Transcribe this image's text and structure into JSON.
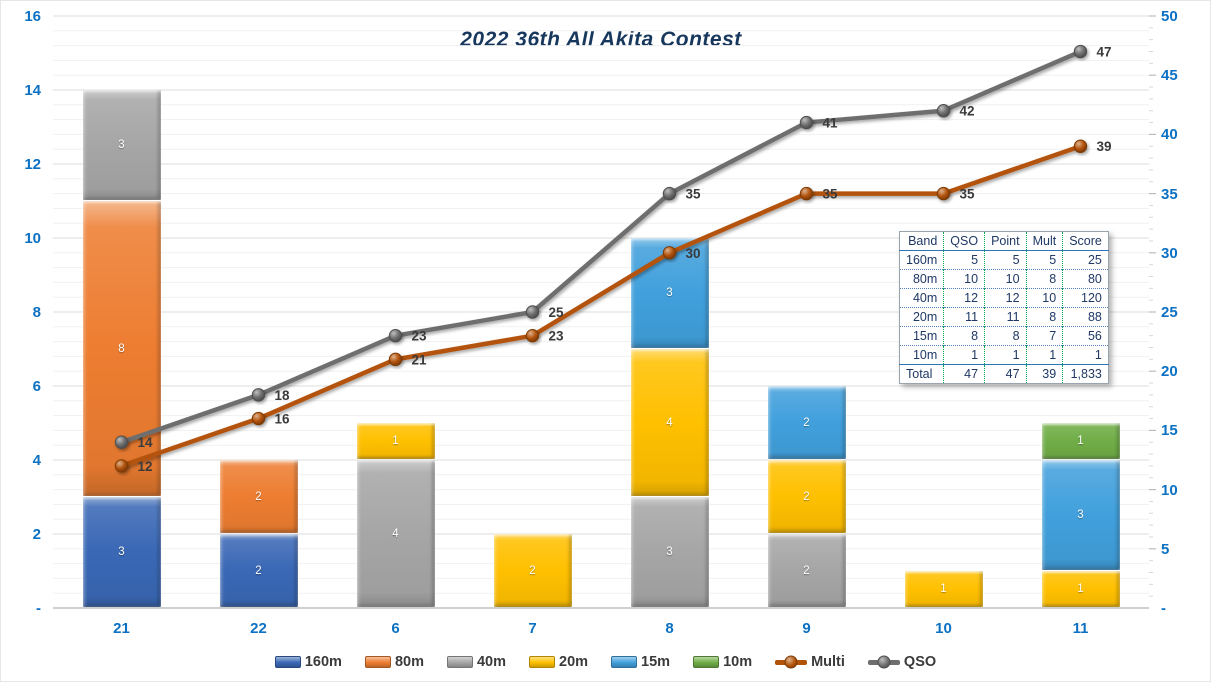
{
  "chart_data": {
    "type": "bar",
    "subtype": "stacked-column-with-lines",
    "title": "2022 36th All Akita Contest",
    "categories": [
      "21",
      "22",
      "6",
      "7",
      "8",
      "9",
      "10",
      "11"
    ],
    "series": [
      {
        "name": "160m",
        "color": "#3A68B5",
        "values": [
          3,
          2,
          0,
          0,
          0,
          0,
          0,
          0
        ]
      },
      {
        "name": "80m",
        "color": "#ED7D31",
        "values": [
          8,
          2,
          0,
          0,
          0,
          0,
          0,
          0
        ]
      },
      {
        "name": "40m",
        "color": "#A6A6A6",
        "values": [
          3,
          0,
          4,
          0,
          3,
          2,
          0,
          0
        ]
      },
      {
        "name": "20m",
        "color": "#FFC000",
        "values": [
          0,
          0,
          1,
          2,
          4,
          2,
          1,
          1
        ]
      },
      {
        "name": "15m",
        "color": "#41A0DC",
        "values": [
          0,
          0,
          0,
          0,
          3,
          2,
          0,
          3
        ]
      },
      {
        "name": "10m",
        "color": "#70AD47",
        "values": [
          0,
          0,
          0,
          0,
          0,
          0,
          0,
          1
        ]
      }
    ],
    "line_series": [
      {
        "name": "Multi",
        "color": "#B35309",
        "axis": "right",
        "values": [
          12,
          16,
          21,
          23,
          30,
          35,
          35,
          39
        ]
      },
      {
        "name": "QSO",
        "color": "#6E6E6E",
        "axis": "right",
        "values": [
          14,
          18,
          23,
          25,
          35,
          41,
          42,
          47
        ]
      }
    ],
    "left_axis": {
      "min": 0,
      "max": 16,
      "major_step": 2,
      "minor_step": 0.4,
      "tick_labels": [
        "-",
        "2",
        "4",
        "6",
        "8",
        "10",
        "12",
        "14",
        "16"
      ]
    },
    "right_axis": {
      "min": 0,
      "max": 50,
      "major_step": 5,
      "minor_step": 1,
      "tick_labels": [
        "-",
        "5",
        "10",
        "15",
        "20",
        "25",
        "30",
        "35",
        "40",
        "45",
        "50"
      ]
    },
    "legend_position": "bottom",
    "grid": "horizontal major + minor"
  },
  "score_table": {
    "headers": [
      "Band",
      "QSO",
      "Point",
      "Mult",
      "Score"
    ],
    "rows": [
      [
        "160m",
        "5",
        "5",
        "5",
        "25"
      ],
      [
        "80m",
        "10",
        "10",
        "8",
        "80"
      ],
      [
        "40m",
        "12",
        "12",
        "10",
        "120"
      ],
      [
        "20m",
        "11",
        "11",
        "8",
        "88"
      ],
      [
        "15m",
        "8",
        "8",
        "7",
        "56"
      ],
      [
        "10m",
        "1",
        "1",
        "1",
        "1"
      ]
    ],
    "total_row": [
      "Total",
      "47",
      "47",
      "39",
      "1,833"
    ]
  },
  "colors": {
    "axis_text": "#0C71C3",
    "title_text": "#17375D",
    "line_value_label": "#3A3A3A",
    "bar_value_label": "#FFFFFF",
    "grid_major": "#DCDCDC",
    "grid_minor": "#F1F1F1",
    "axis_line": "#BFBFBF",
    "table_text": "#1F3864",
    "legend_text": "#3A3A3A"
  }
}
